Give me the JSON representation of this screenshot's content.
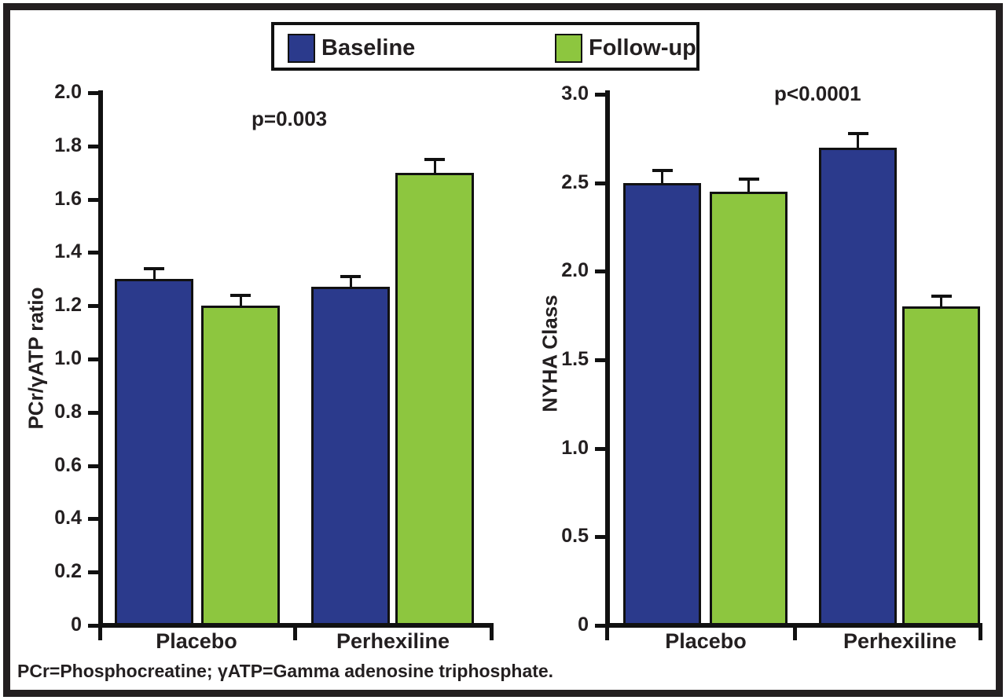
{
  "legend": {
    "items": [
      {
        "label": "Baseline",
        "color": "#2B3A8C"
      },
      {
        "label": "Follow-up",
        "color": "#8DC63F"
      }
    ]
  },
  "footnote": "PCr=Phosphocreatine; γATP=Gamma adenosine triphosphate.",
  "ink_color": "#111111",
  "text_color": "#231F20",
  "chart_data": [
    {
      "type": "bar",
      "title": "",
      "xlabel": "",
      "ylabel": "PCr/γATP ratio",
      "annotation": "p=0.003",
      "categories": [
        "Placebo",
        "Perhexiline"
      ],
      "series": [
        {
          "name": "Baseline",
          "values": [
            1.3,
            1.27
          ],
          "errors": [
            0.04,
            0.04
          ]
        },
        {
          "name": "Follow-up",
          "values": [
            1.2,
            1.7
          ],
          "errors": [
            0.04,
            0.05
          ]
        }
      ],
      "ylim": [
        0,
        2.0
      ],
      "ytick_values": [
        0,
        0.2,
        0.4,
        0.6,
        0.8,
        1.0,
        1.2,
        1.4,
        1.6,
        1.8,
        2.0
      ],
      "ytick_labels": [
        "0",
        "0.2",
        "0.4",
        "0.6",
        "0.8",
        "1.0",
        "1.2",
        "1.4",
        "1.6",
        "1.8",
        "2.0"
      ],
      "grid": false,
      "legend_position": "top"
    },
    {
      "type": "bar",
      "title": "",
      "xlabel": "",
      "ylabel": "NYHA Class",
      "annotation": "p<0.0001",
      "categories": [
        "Placebo",
        "Perhexiline"
      ],
      "series": [
        {
          "name": "Baseline",
          "values": [
            2.5,
            2.7
          ],
          "errors": [
            0.07,
            0.08
          ]
        },
        {
          "name": "Follow-up",
          "values": [
            2.45,
            1.8
          ],
          "errors": [
            0.07,
            0.06
          ]
        }
      ],
      "ylim": [
        0,
        3.0
      ],
      "ytick_values": [
        0,
        0.5,
        1.0,
        1.5,
        2.0,
        2.5,
        3.0
      ],
      "ytick_labels": [
        "0",
        "0.5",
        "1.0",
        "1.5",
        "2.0",
        "2.5",
        "3.0"
      ],
      "grid": false,
      "legend_position": "top"
    }
  ]
}
